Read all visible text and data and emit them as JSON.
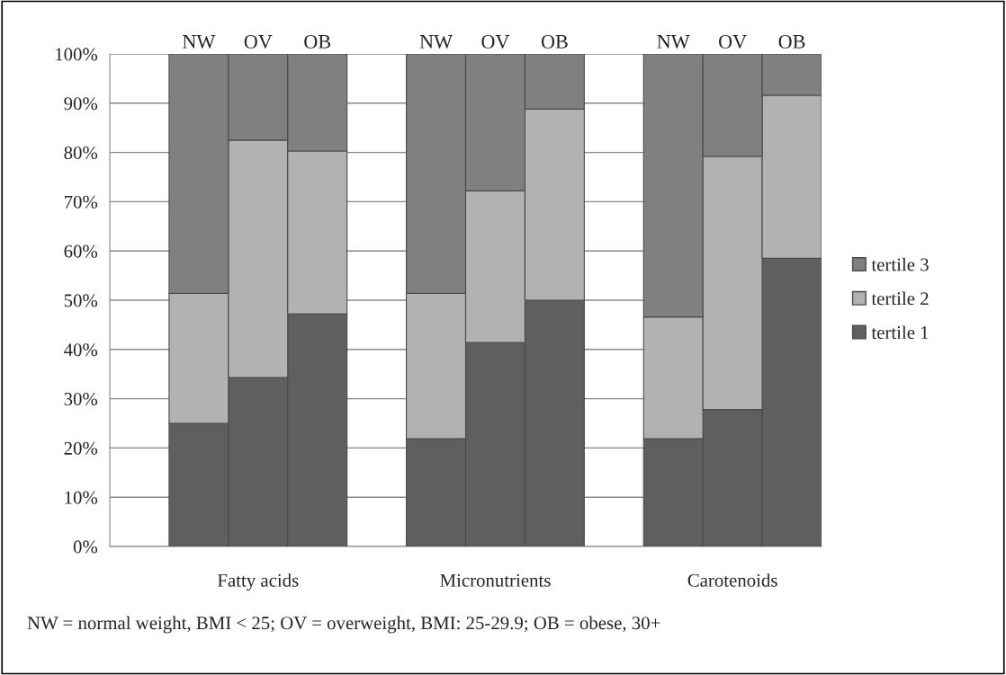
{
  "chart_data": {
    "type": "bar",
    "stacked": true,
    "categories": [
      "NW",
      "OV",
      "OB",
      "NW",
      "OV",
      "OB",
      "NW",
      "OV",
      "OB"
    ],
    "series": [
      {
        "name": "tertile 1",
        "color": "#5f5f5f",
        "values": [
          25,
          34.3,
          47.2,
          21.9,
          41.4,
          50,
          21.9,
          27.8,
          58.5
        ]
      },
      {
        "name": "tertile 2",
        "color": "#b2b2b2",
        "values": [
          26.4,
          48.2,
          33.1,
          29.5,
          30.8,
          38.8,
          24.7,
          51.4,
          33.1
        ]
      },
      {
        "name": "tertile 3",
        "color": "#808080",
        "values": [
          48.6,
          17.5,
          19.7,
          48.6,
          27.8,
          11.2,
          53.4,
          20.8,
          8.4
        ]
      }
    ],
    "ylim": [
      0,
      100
    ],
    "yticks": [
      {
        "value": 0,
        "label": "0%"
      },
      {
        "value": 10,
        "label": "10%"
      },
      {
        "value": 20,
        "label": "20%"
      },
      {
        "value": 30,
        "label": "30%"
      },
      {
        "value": 40,
        "label": "40%"
      },
      {
        "value": 50,
        "label": "50%"
      },
      {
        "value": 60,
        "label": "60%"
      },
      {
        "value": 70,
        "label": "70%"
      },
      {
        "value": 80,
        "label": "80%"
      },
      {
        "value": 90,
        "label": "90%"
      },
      {
        "value": 100,
        "label": "100%"
      }
    ],
    "grid": "y",
    "legend": "right",
    "annotations": [
      "Fatty acids",
      "Micronutrients",
      "Carotenoids",
      "NW = normal weight, BMI < 25; OV = overweight, BMI: 25-29.9; OB = obese, 30+"
    ]
  }
}
